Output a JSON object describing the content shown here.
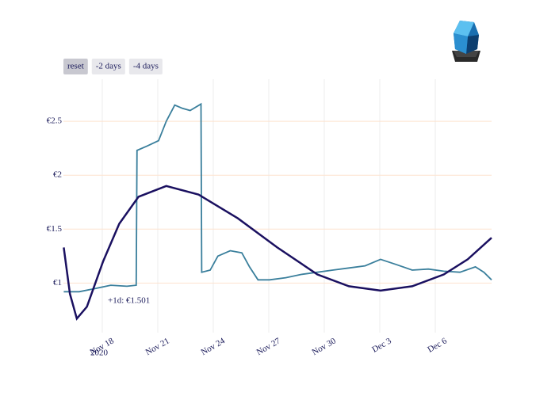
{
  "chart_data": {
    "type": "line",
    "buttons": [
      "reset",
      "-2 days",
      "-4 days"
    ],
    "annotation": "+1d: €1.501",
    "xtick_year": "2020",
    "xlim": [
      "2020-11-15T21:36",
      "2020-12-09T01:00"
    ],
    "xticks": [
      {
        "value": "2020-11-18T00:00",
        "label": "Nov 18"
      },
      {
        "value": "2020-11-21T00:00",
        "label": "Nov 21"
      },
      {
        "value": "2020-11-24T00:00",
        "label": "Nov 24"
      },
      {
        "value": "2020-11-27T00:00",
        "label": "Nov 27"
      },
      {
        "value": "2020-11-30T00:00",
        "label": "Nov 30"
      },
      {
        "value": "2020-12-03T00:00",
        "label": "Dec 3"
      },
      {
        "value": "2020-12-06T00:00",
        "label": "Dec 6"
      }
    ],
    "ylim": [
      0.54,
      2.89
    ],
    "yticks": [
      {
        "value": 1,
        "label": "€1"
      },
      {
        "value": 1.5,
        "label": "€1.5"
      },
      {
        "value": 2,
        "label": "€2"
      },
      {
        "value": 2.5,
        "label": "€2.5"
      }
    ],
    "grid": true,
    "series": [
      {
        "color": "#3a7f9c",
        "x": [
          "2020-11-15T22:00",
          "2020-11-16T18:00",
          "2020-11-17T15:00",
          "2020-11-18T11:00",
          "2020-11-19T08:00",
          "2020-11-19T20:00",
          "2020-11-19T21:00",
          "2020-11-20T10:00",
          "2020-11-21T01:00",
          "2020-11-21T11:00",
          "2020-11-21T22:00",
          "2020-11-22T08:00",
          "2020-11-22T18:00",
          "2020-11-23T08:00",
          "2020-11-23T09:00",
          "2020-11-23T20:00",
          "2020-11-24T06:00",
          "2020-11-24T22:00",
          "2020-11-25T13:00",
          "2020-11-25T23:00",
          "2020-11-26T10:00",
          "2020-11-27T01:00",
          "2020-11-27T22:00",
          "2020-11-28T18:00",
          "2020-11-29T15:00",
          "2020-11-30T11:00",
          "2020-12-01T08:00",
          "2020-12-02T05:00",
          "2020-12-03T01:00",
          "2020-12-03T22:00",
          "2020-12-04T18:00",
          "2020-12-05T15:00",
          "2020-12-06T11:00",
          "2020-12-07T08:00",
          "2020-12-08T04:00",
          "2020-12-08T15:00",
          "2020-12-09T01:00"
        ],
        "values": [
          0.92,
          0.92,
          0.95,
          0.98,
          0.97,
          0.98,
          2.23,
          2.27,
          2.32,
          2.5,
          2.65,
          2.62,
          2.6,
          2.66,
          1.1,
          1.12,
          1.25,
          1.3,
          1.28,
          1.15,
          1.03,
          1.03,
          1.05,
          1.08,
          1.1,
          1.12,
          1.14,
          1.16,
          1.22,
          1.17,
          1.12,
          1.13,
          1.11,
          1.1,
          1.15,
          1.1,
          1.03
        ]
      },
      {
        "color": "#1a1060",
        "x": [
          "2020-11-15T22:00",
          "2020-11-16T06:00",
          "2020-11-16T15:00",
          "2020-11-17T04:00",
          "2020-11-18T01:00",
          "2020-11-18T22:00",
          "2020-11-19T23:00",
          "2020-11-21T11:00",
          "2020-11-23T05:00",
          "2020-11-25T08:00",
          "2020-11-27T11:00",
          "2020-11-29T15:00",
          "2020-12-01T08:00",
          "2020-12-03T01:00",
          "2020-12-04T18:00",
          "2020-12-06T11:00",
          "2020-12-07T18:00",
          "2020-12-09T01:00"
        ],
        "values": [
          1.33,
          0.9,
          0.67,
          0.78,
          1.2,
          1.55,
          1.8,
          1.9,
          1.82,
          1.6,
          1.33,
          1.08,
          0.97,
          0.93,
          0.97,
          1.08,
          1.22,
          1.42
        ]
      }
    ]
  }
}
